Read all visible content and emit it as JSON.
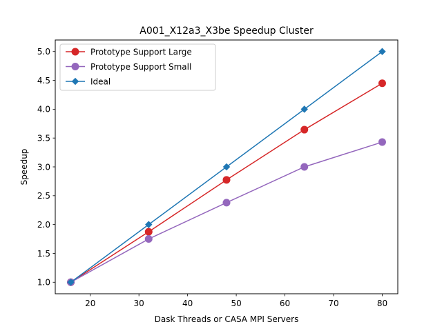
{
  "chart_data": {
    "type": "line",
    "title": "A001_X12a3_X3be Speedup Cluster",
    "xlabel": "Dask Threads or CASA MPI Servers",
    "ylabel": "Speedup",
    "xlim": [
      12.8,
      83.2
    ],
    "ylim": [
      0.8,
      5.2
    ],
    "xticks": [
      20,
      30,
      40,
      50,
      60,
      70,
      80
    ],
    "yticks": [
      1.0,
      1.5,
      2.0,
      2.5,
      3.0,
      3.5,
      4.0,
      4.5,
      5.0
    ],
    "xtick_labels": [
      "20",
      "30",
      "40",
      "50",
      "60",
      "70",
      "80"
    ],
    "ytick_labels": [
      "1.0",
      "1.5",
      "2.0",
      "2.5",
      "3.0",
      "3.5",
      "4.0",
      "4.5",
      "5.0"
    ],
    "grid": false,
    "legend_position": "top-left",
    "x": [
      16,
      32,
      48,
      64,
      80
    ],
    "series": [
      {
        "name": "Prototype Support Large",
        "values": [
          1.0,
          1.875,
          2.775,
          3.645,
          4.45
        ],
        "color": "#d62728",
        "marker": "circle"
      },
      {
        "name": "Prototype Support Small",
        "values": [
          1.0,
          1.75,
          2.38,
          3.0,
          3.43
        ],
        "color": "#9467bd",
        "marker": "circle"
      },
      {
        "name": "Ideal",
        "values": [
          1.0,
          2.0,
          3.0,
          4.0,
          5.0
        ],
        "color": "#1f77b4",
        "marker": "diamond"
      }
    ]
  }
}
